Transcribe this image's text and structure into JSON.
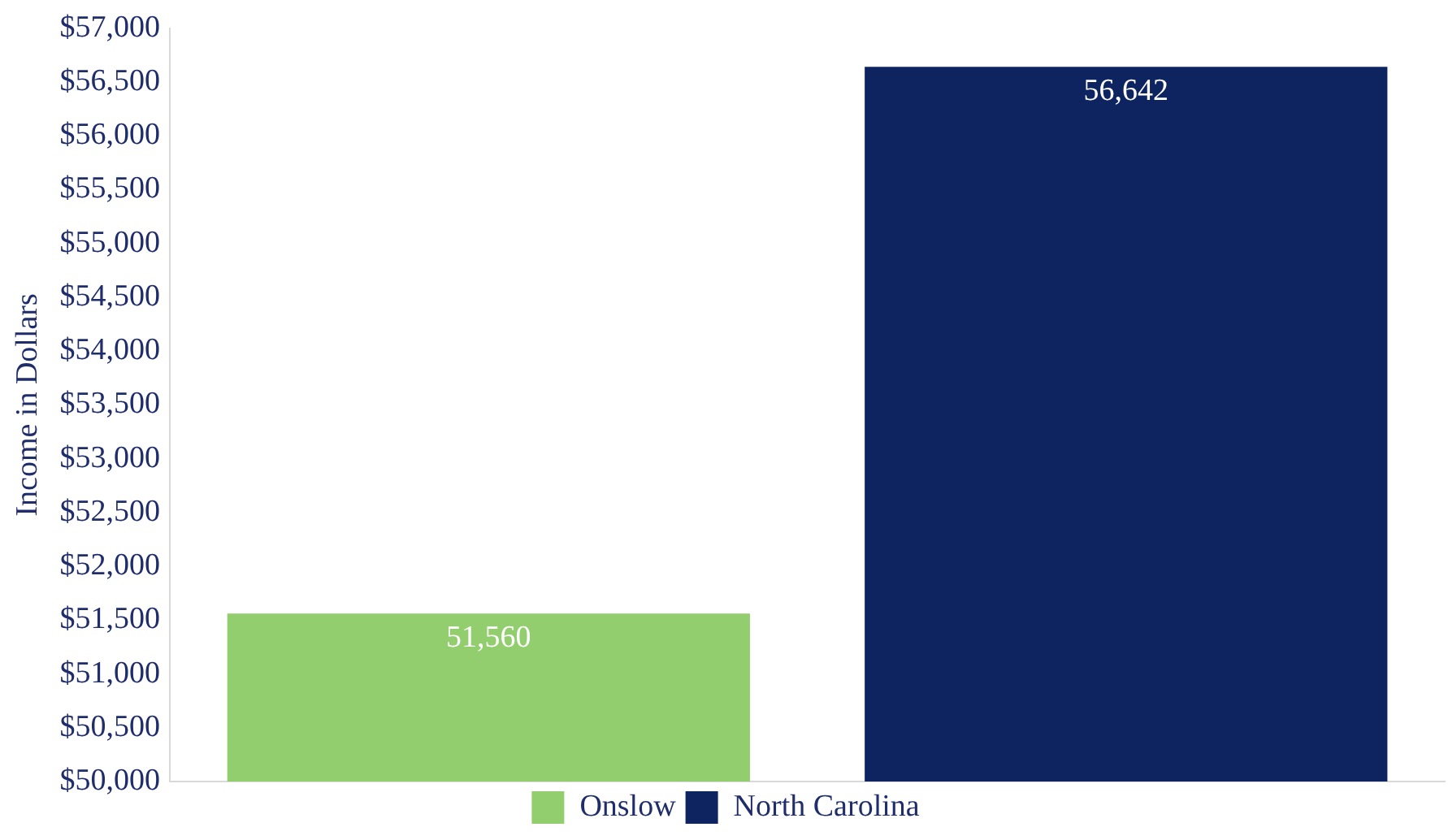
{
  "chart_data": {
    "type": "bar",
    "ylabel": "Income in Dollars",
    "categories": [
      null,
      null
    ],
    "series": [
      {
        "name": "Onslow",
        "color": "#92cd6e",
        "values": [
          51560,
          null
        ],
        "value_labels": [
          "51,560",
          null
        ]
      },
      {
        "name": "North Carolina",
        "color": "#0d2460",
        "values": [
          null,
          56642
        ],
        "value_labels": [
          null,
          "56,642"
        ]
      }
    ],
    "ylim": [
      50000,
      57000
    ],
    "yticks": [
      {
        "value": 50000,
        "label": "$50,000"
      },
      {
        "value": 50500,
        "label": "$50,500"
      },
      {
        "value": 51000,
        "label": "$51,000"
      },
      {
        "value": 51500,
        "label": "$51,500"
      },
      {
        "value": 52000,
        "label": "$52,000"
      },
      {
        "value": 52500,
        "label": "$52,500"
      },
      {
        "value": 53000,
        "label": "$53,000"
      },
      {
        "value": 53500,
        "label": "$53,500"
      },
      {
        "value": 54000,
        "label": "$54,000"
      },
      {
        "value": 54500,
        "label": "$54,500"
      },
      {
        "value": 55000,
        "label": "$55,000"
      },
      {
        "value": 55500,
        "label": "$55,500"
      },
      {
        "value": 56000,
        "label": "$56,000"
      },
      {
        "value": 56500,
        "label": "$56,500"
      },
      {
        "value": 57000,
        "label": "$57,000"
      }
    ],
    "grid": false,
    "legend": "bottom",
    "tick_labels": "y"
  }
}
